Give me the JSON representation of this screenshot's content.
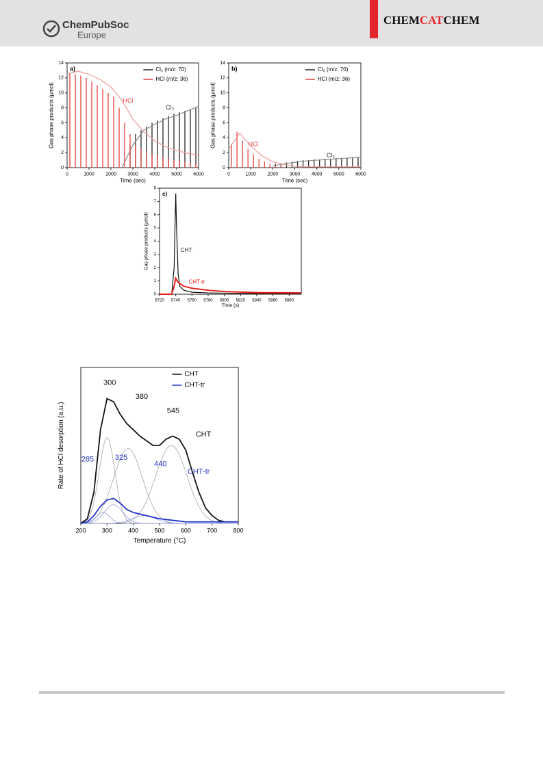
{
  "header": {
    "society": "ChemPubSoc",
    "region": "Europe",
    "journal": [
      "CHEM",
      "CAT",
      "CHEM"
    ]
  },
  "chart_data": [
    {
      "type": "pulse",
      "panel": "a)",
      "xlabel": "Time (sec)",
      "ylabel": "Gas phase products (µmol)",
      "xlim": [
        0,
        6000
      ],
      "ylim": [
        0,
        14
      ],
      "xticks": [
        0,
        1000,
        2000,
        3000,
        4000,
        5000,
        6000
      ],
      "yticks": [
        0,
        2,
        4,
        6,
        8,
        10,
        12,
        14
      ],
      "legend": "top-right",
      "x": [
        125,
        375,
        625,
        875,
        1125,
        1375,
        1625,
        1875,
        2125,
        2375,
        2625,
        2875,
        3125,
        3375,
        3625,
        3875,
        4125,
        4375,
        4625,
        4875,
        5125,
        5375,
        5625,
        5875
      ],
      "envelope_x": [
        0,
        500,
        1000,
        1500,
        2000,
        2500,
        3000,
        3500,
        4000,
        4500,
        5000,
        5500,
        6000
      ],
      "series": [
        {
          "name": "Cl₂ (m/z: 70)",
          "color": "#222222",
          "envelope_color": "#8a8a8a",
          "values": [
            null,
            null,
            null,
            null,
            null,
            null,
            null,
            null,
            null,
            null,
            null,
            3.0,
            4.5,
            5.0,
            5.5,
            6.0,
            6.3,
            6.6,
            6.9,
            7.2,
            7.4,
            7.6,
            7.8,
            8.0
          ],
          "envelope": [
            null,
            null,
            null,
            null,
            null,
            0,
            3.0,
            5.0,
            5.8,
            6.5,
            7.0,
            7.6,
            8.2
          ]
        },
        {
          "name": "HCl (m/z: 36)",
          "color": "#e8403a",
          "envelope_color": "#f09a98",
          "values": [
            12.7,
            12.5,
            12.3,
            12.0,
            11.5,
            11.0,
            10.5,
            10.0,
            9.5,
            8.0,
            6.0,
            4.5,
            3.0,
            2.5,
            2.2,
            1.8,
            1.6,
            1.4,
            1.2,
            1.0,
            0.9,
            0.8,
            0.7,
            0.6
          ],
          "envelope": [
            12.5,
            12.9,
            12.5,
            11.8,
            10.8,
            9.0,
            6.5,
            4.8,
            3.6,
            2.8,
            2.3,
            1.9,
            1.7
          ]
        }
      ],
      "annotations": [
        {
          "text": "HCl",
          "x": 2780,
          "y": 8.9,
          "color": "#e8403a"
        },
        {
          "text": "Cl₂",
          "x": 4690,
          "y": 8.0,
          "color": "#333333"
        }
      ]
    },
    {
      "type": "pulse",
      "panel": "b)",
      "xlabel": "Time (sec)",
      "ylabel": "Gas phase products (µmol)",
      "xlim": [
        0,
        6000
      ],
      "ylim": [
        0,
        14
      ],
      "xticks": [
        0,
        1000,
        2000,
        3000,
        4000,
        5000,
        6000
      ],
      "yticks": [
        0,
        2,
        4,
        6,
        8,
        10,
        12,
        14
      ],
      "legend": "top-right",
      "x": [
        125,
        375,
        625,
        875,
        1125,
        1375,
        1625,
        1875,
        2125,
        2375,
        2625,
        2875,
        3125,
        3375,
        3625,
        3875,
        4125,
        4375,
        4625,
        4875,
        5125,
        5375,
        5625,
        5875
      ],
      "envelope_x": [
        0,
        500,
        1000,
        1500,
        2000,
        2500,
        3000,
        3500,
        4000,
        4500,
        5000,
        5500,
        6000
      ],
      "series": [
        {
          "name": "Cl₂ (m/z: 70)",
          "color": "#222222",
          "envelope_color": "#8a8a8a",
          "values": [
            null,
            null,
            null,
            null,
            null,
            null,
            null,
            0.3,
            0.5,
            0.6,
            0.7,
            0.8,
            0.9,
            1.0,
            1.0,
            1.1,
            1.1,
            1.2,
            1.2,
            1.3,
            1.3,
            1.3,
            1.4,
            1.4
          ],
          "envelope": [
            null,
            null,
            null,
            null,
            0.2,
            0.5,
            0.7,
            0.9,
            1.0,
            1.1,
            1.2,
            1.3,
            1.4
          ]
        },
        {
          "name": "HCl (m/z: 36)",
          "color": "#e8403a",
          "envelope_color": "#f09a98",
          "values": [
            3.2,
            4.8,
            3.6,
            2.5,
            1.8,
            1.2,
            0.8,
            0.5,
            0.3,
            0.2,
            null,
            null,
            null,
            null,
            null,
            null,
            null,
            null,
            null,
            null,
            null,
            null,
            null,
            null
          ],
          "envelope": [
            2.5,
            4.6,
            2.9,
            1.6,
            0.8,
            0.4,
            0.2,
            0.1,
            0.1,
            0.1,
            0.1,
            0.1,
            0.1
          ]
        }
      ],
      "annotations": [
        {
          "text": "HCl",
          "x": 1120,
          "y": 3.1,
          "color": "#e8403a"
        },
        {
          "text": "Cl₂",
          "x": 4630,
          "y": 1.6,
          "color": "#333333"
        }
      ]
    },
    {
      "type": "line",
      "panel": "c)",
      "xlabel": "Time (s)",
      "ylabel": "Gas phase products (µmol)",
      "xlim": [
        5720,
        5895
      ],
      "ylim": [
        0,
        8
      ],
      "xticks": [
        5720,
        5740,
        5760,
        5780,
        5800,
        5820,
        5840,
        5860,
        5880
      ],
      "yticks": [
        0,
        1,
        2,
        3,
        4,
        5,
        6,
        7,
        8
      ],
      "x": [
        5720,
        5735,
        5738,
        5740,
        5741,
        5743,
        5745,
        5750,
        5760,
        5780,
        5800,
        5840,
        5895
      ],
      "series": [
        {
          "color": "#111111",
          "width": 1.2,
          "values": [
            0,
            0,
            2.0,
            7.6,
            5.0,
            1.5,
            0.6,
            0.3,
            0.15,
            0.1,
            0.08,
            0.05,
            0.05
          ]
        },
        {
          "color": "#e8201a",
          "width": 2,
          "values": [
            0,
            0,
            0.6,
            1.2,
            1.1,
            0.9,
            0.8,
            0.6,
            0.45,
            0.3,
            0.2,
            0.12,
            0.1
          ]
        }
      ],
      "annotations": [
        {
          "text": "CHT",
          "x": 5753,
          "y": 3.3,
          "color": "#111111"
        },
        {
          "text": "CHT-tr",
          "x": 5766,
          "y": 0.9,
          "color": "#e8201a"
        }
      ]
    },
    {
      "type": "line",
      "xlabel": "Temperature (°C)",
      "ylabel": "Rate of HCl desorption (a.u.)",
      "xlim": [
        200,
        800
      ],
      "ylim": [
        0,
        1
      ],
      "xticks": [
        200,
        300,
        400,
        500,
        600,
        700,
        800
      ],
      "legend": "top-right",
      "x": [
        200,
        225,
        250,
        275,
        300,
        325,
        350,
        375,
        400,
        425,
        450,
        475,
        500,
        525,
        550,
        575,
        600,
        625,
        650,
        675,
        700,
        725,
        750,
        775,
        800
      ],
      "series": [
        {
          "name": "CHT",
          "color": "#111111",
          "width": 1.8,
          "values": [
            0,
            0.03,
            0.2,
            0.6,
            0.8,
            0.78,
            0.7,
            0.64,
            0.6,
            0.56,
            0.53,
            0.5,
            0.5,
            0.54,
            0.56,
            0.54,
            0.47,
            0.33,
            0.2,
            0.1,
            0.05,
            0.02,
            0.01,
            0.01,
            0.01
          ]
        },
        {
          "name": "CHT-tr",
          "color": "#2233cc",
          "width": 1.8,
          "values": [
            0,
            0.01,
            0.05,
            0.11,
            0.15,
            0.16,
            0.13,
            0.09,
            0.07,
            0.06,
            0.05,
            0.04,
            0.03,
            0.025,
            0.02,
            0.015,
            0.01,
            0.01,
            0.01,
            0.01,
            0.01,
            0.01,
            0.01,
            0.01,
            0.01
          ]
        }
      ],
      "components": [
        {
          "color": "#999999",
          "center": 300,
          "height": 0.55,
          "width": 30
        },
        {
          "color": "#999999",
          "center": 380,
          "height": 0.48,
          "width": 55
        },
        {
          "color": "#999999",
          "center": 545,
          "height": 0.5,
          "width": 60
        },
        {
          "color": "#8890dd",
          "center": 285,
          "height": 0.07,
          "width": 25
        },
        {
          "color": "#8890dd",
          "center": 325,
          "height": 0.12,
          "width": 35
        },
        {
          "color": "#8890dd",
          "center": 440,
          "height": 0.05,
          "width": 45
        }
      ],
      "annotations": [
        {
          "text": "300",
          "x": 310,
          "y": 0.9,
          "color": "#111111"
        },
        {
          "text": "380",
          "x": 432,
          "y": 0.81,
          "color": "#111111"
        },
        {
          "text": "545",
          "x": 552,
          "y": 0.72,
          "color": "#111111"
        },
        {
          "text": "CHT",
          "x": 667,
          "y": 0.57,
          "color": "#111111"
        },
        {
          "text": "285",
          "x": 226,
          "y": 0.41,
          "color": "#2233cc"
        },
        {
          "text": "325",
          "x": 354,
          "y": 0.42,
          "color": "#2233cc"
        },
        {
          "text": "440",
          "x": 503,
          "y": 0.38,
          "color": "#2233cc"
        },
        {
          "text": "CHT-tr",
          "x": 649,
          "y": 0.33,
          "color": "#2233cc"
        }
      ]
    }
  ]
}
